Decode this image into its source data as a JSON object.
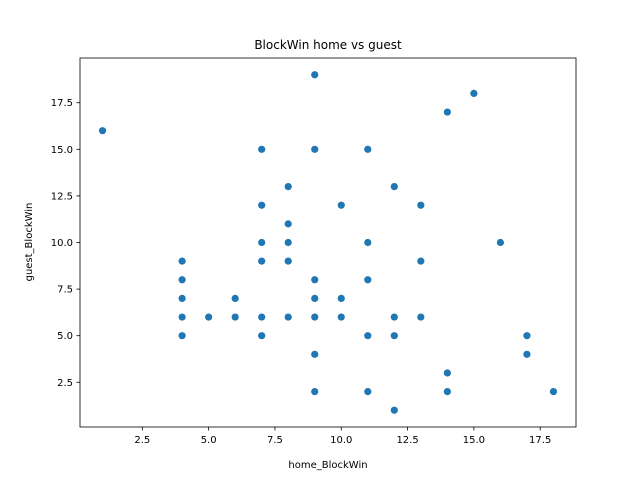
{
  "chart_data": {
    "type": "scatter",
    "title": "BlockWin home vs guest",
    "xlabel": "home_BlockWin",
    "ylabel": "guest_BlockWin",
    "xlim": [
      0.15,
      18.85
    ],
    "ylim": [
      0.1,
      19.9
    ],
    "xticks": [
      2.5,
      5.0,
      7.5,
      10.0,
      12.5,
      15.0,
      17.5
    ],
    "xtick_labels": [
      "2.5",
      "5.0",
      "7.5",
      "10.0",
      "12.5",
      "15.0",
      "17.5"
    ],
    "yticks": [
      2.5,
      5.0,
      7.5,
      10.0,
      12.5,
      15.0,
      17.5
    ],
    "ytick_labels": [
      "2.5",
      "5.0",
      "7.5",
      "10.0",
      "12.5",
      "15.0",
      "17.5"
    ],
    "grid": false,
    "marker_color": "#1f77b4",
    "points": [
      [
        1,
        16
      ],
      [
        4,
        9
      ],
      [
        4,
        8
      ],
      [
        4,
        7
      ],
      [
        4,
        6
      ],
      [
        4,
        5
      ],
      [
        5,
        6
      ],
      [
        6,
        7
      ],
      [
        6,
        6
      ],
      [
        7,
        15
      ],
      [
        7,
        12
      ],
      [
        7,
        10
      ],
      [
        7,
        9
      ],
      [
        7,
        6
      ],
      [
        7,
        5
      ],
      [
        8,
        13
      ],
      [
        8,
        11
      ],
      [
        8,
        10
      ],
      [
        8,
        9
      ],
      [
        8,
        6
      ],
      [
        9,
        19
      ],
      [
        9,
        15
      ],
      [
        9,
        8
      ],
      [
        9,
        7
      ],
      [
        9,
        6
      ],
      [
        9,
        4
      ],
      [
        9,
        2
      ],
      [
        10,
        12
      ],
      [
        10,
        7
      ],
      [
        10,
        6
      ],
      [
        11,
        15
      ],
      [
        11,
        10
      ],
      [
        11,
        8
      ],
      [
        11,
        5
      ],
      [
        11,
        2
      ],
      [
        12,
        13
      ],
      [
        12,
        6
      ],
      [
        12,
        5
      ],
      [
        12,
        1
      ],
      [
        13,
        12
      ],
      [
        13,
        9
      ],
      [
        13,
        6
      ],
      [
        14,
        17
      ],
      [
        14,
        3
      ],
      [
        14,
        2
      ],
      [
        15,
        18
      ],
      [
        16,
        10
      ],
      [
        17,
        5
      ],
      [
        17,
        4
      ],
      [
        18,
        2
      ]
    ]
  }
}
